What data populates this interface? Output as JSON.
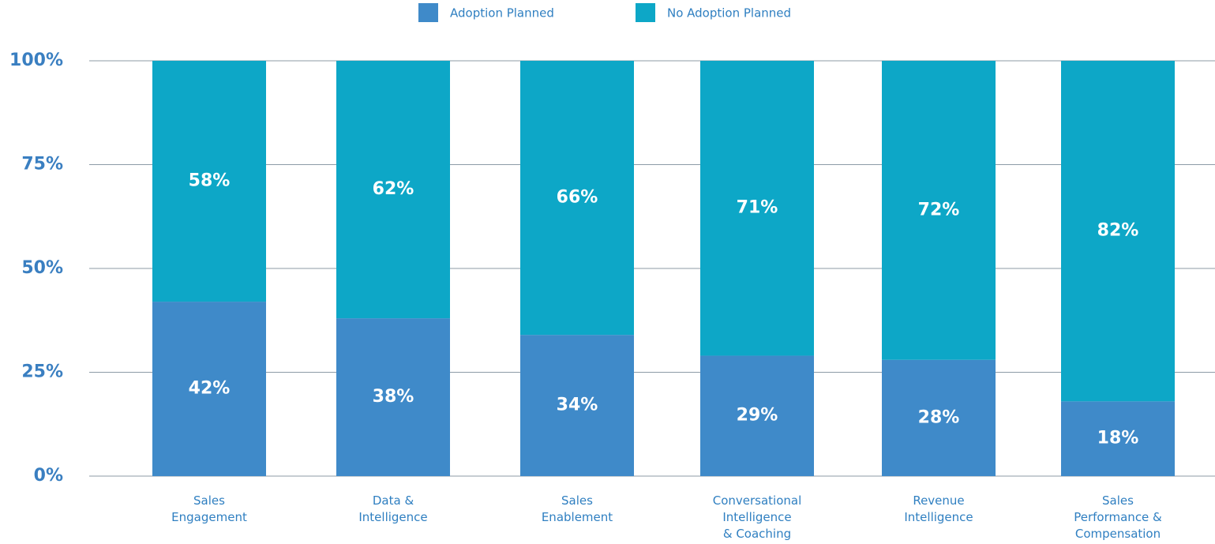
{
  "chart_data": {
    "type": "stacked_bar",
    "categories": [
      [
        "Sales",
        "Engagement"
      ],
      [
        "Data &",
        "Intelligence"
      ],
      [
        "Sales",
        "Enablement"
      ],
      [
        "Conversational",
        "Intelligence",
        "& Coaching"
      ],
      [
        "Revenue",
        "Intelligence"
      ],
      [
        "Sales",
        "Performance &",
        "Compensation"
      ]
    ],
    "series": [
      {
        "name": "Adoption Planned",
        "color": "#3f8ac9",
        "values": [
          42,
          38,
          34,
          29,
          28,
          18
        ],
        "value_labels": [
          "42%",
          "38%",
          "34%",
          "29%",
          "28%",
          "18%"
        ]
      },
      {
        "name": "No Adoption Planned",
        "color": "#0da7c7",
        "values": [
          58,
          62,
          66,
          71,
          72,
          82
        ],
        "value_labels": [
          "58%",
          "62%",
          "66%",
          "71%",
          "72%",
          "82%"
        ]
      }
    ],
    "ylim": [
      0,
      100
    ],
    "yticks": [
      {
        "value": 0,
        "label": "0%"
      },
      {
        "value": 25,
        "label": "25%"
      },
      {
        "value": 50,
        "label": "50%"
      },
      {
        "value": 75,
        "label": "75%"
      },
      {
        "value": 100,
        "label": "100%"
      }
    ],
    "grid": true,
    "legend": "top"
  }
}
